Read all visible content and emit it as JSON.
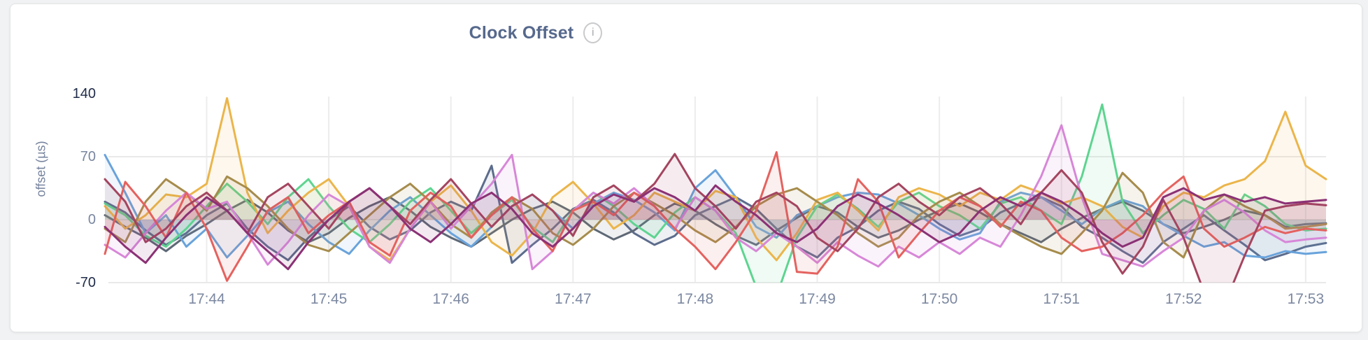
{
  "page": {
    "background": "#f1f2f3"
  },
  "card": {
    "background": "#ffffff",
    "border_color": "#e4e5e6"
  },
  "header": {
    "title": "Clock Offset",
    "info_icon": "i"
  },
  "chart_data": {
    "type": "line",
    "title": "Clock Offset",
    "xlabel": "",
    "ylabel": "offset (µs)",
    "ylim": [
      -70,
      140
    ],
    "grid": true,
    "legend": "none",
    "x_start": "17:43:10",
    "x_interval_seconds": 10,
    "x_ticks": [
      {
        "label": "17:44",
        "index": 5
      },
      {
        "label": "17:45",
        "index": 11
      },
      {
        "label": "17:46",
        "index": 17
      },
      {
        "label": "17:47",
        "index": 23
      },
      {
        "label": "17:48",
        "index": 29
      },
      {
        "label": "17:49",
        "index": 35
      },
      {
        "label": "17:50",
        "index": 41
      },
      {
        "label": "17:51",
        "index": 47
      },
      {
        "label": "17:52",
        "index": 53
      },
      {
        "label": "17:53",
        "index": 59
      }
    ],
    "y_ticks": [
      {
        "label": "140",
        "value": 140,
        "emphasized": true
      },
      {
        "label": "70",
        "value": 70,
        "emphasized": false
      },
      {
        "label": "0",
        "value": 0,
        "emphasized": false
      },
      {
        "label": "-70",
        "value": -70,
        "emphasized": true
      }
    ],
    "fill_opacity": 0.1,
    "series": [
      {
        "name": "slate",
        "color": "#5c6c8c",
        "values": [
          20,
          8,
          -12,
          -28,
          -15,
          5,
          18,
          -10,
          -30,
          -45,
          -20,
          0,
          15,
          -8,
          -22,
          -12,
          8,
          20,
          10,
          60,
          -48,
          -28,
          -10,
          12,
          22,
          8,
          -15,
          -28,
          -18,
          5,
          15,
          25,
          12,
          -10,
          -30,
          -42,
          -20,
          -8,
          10,
          20,
          12,
          -5,
          -18,
          -10,
          8,
          18,
          25,
          15,
          -8,
          -20,
          -35,
          -48,
          -25,
          -10,
          5,
          -12,
          -28,
          -45,
          -38,
          -30,
          -26
        ]
      },
      {
        "name": "charcoal",
        "color": "#5e6876",
        "values": [
          5,
          -8,
          -20,
          -35,
          -18,
          -5,
          10,
          22,
          8,
          -12,
          -25,
          -15,
          2,
          15,
          25,
          10,
          -8,
          -20,
          -30,
          -15,
          0,
          12,
          20,
          8,
          -10,
          -22,
          -12,
          5,
          18,
          10,
          -5,
          -18,
          -28,
          -12,
          2,
          15,
          8,
          -8,
          -20,
          -12,
          0,
          10,
          18,
          8,
          -5,
          -15,
          -25,
          -10,
          2,
          12,
          20,
          10,
          -5,
          -15,
          -8,
          0,
          10,
          5,
          -8,
          -5,
          -4
        ]
      },
      {
        "name": "blue",
        "color": "#69a3db",
        "values": [
          72,
          30,
          -15,
          5,
          -30,
          -10,
          -42,
          -18,
          8,
          20,
          -5,
          -25,
          -38,
          -12,
          10,
          25,
          5,
          -15,
          -30,
          -8,
          15,
          28,
          10,
          -10,
          18,
          30,
          22,
          8,
          -12,
          35,
          55,
          25,
          -8,
          -20,
          5,
          15,
          25,
          30,
          28,
          18,
          5,
          -10,
          -22,
          -15,
          20,
          30,
          25,
          10,
          -5,
          12,
          22,
          15,
          -5,
          -18,
          -30,
          -25,
          -40,
          -42,
          -35,
          -38,
          -36
        ]
      },
      {
        "name": "green",
        "color": "#5ed490",
        "values": [
          18,
          5,
          -18,
          -30,
          -10,
          15,
          40,
          20,
          -5,
          25,
          45,
          15,
          -10,
          -25,
          -5,
          20,
          35,
          10,
          -15,
          5,
          22,
          -8,
          -25,
          10,
          30,
          15,
          -5,
          -20,
          8,
          25,
          10,
          -15,
          -75,
          -85,
          -20,
          15,
          28,
          12,
          -8,
          20,
          30,
          15,
          5,
          -10,
          18,
          25,
          10,
          -5,
          48,
          128,
          20,
          -15,
          5,
          22,
          12,
          -10,
          28,
          15,
          -5,
          -12,
          -10
        ]
      },
      {
        "name": "gold",
        "color": "#ebb54a",
        "values": [
          15,
          -10,
          5,
          28,
          25,
          40,
          135,
          30,
          -15,
          10,
          30,
          45,
          15,
          -30,
          -45,
          -10,
          20,
          38,
          10,
          -25,
          -40,
          -15,
          25,
          42,
          18,
          -10,
          5,
          30,
          20,
          10,
          32,
          25,
          -20,
          -45,
          -15,
          22,
          30,
          10,
          -12,
          25,
          35,
          28,
          15,
          30,
          22,
          38,
          30,
          18,
          25,
          15,
          -8,
          -20,
          15,
          30,
          25,
          38,
          45,
          65,
          120,
          60,
          45
        ]
      },
      {
        "name": "olive",
        "color": "#a68c4c",
        "values": [
          -10,
          -25,
          20,
          45,
          30,
          10,
          48,
          35,
          15,
          -10,
          -28,
          -35,
          -15,
          5,
          25,
          40,
          20,
          -5,
          -20,
          8,
          25,
          12,
          -15,
          -28,
          -10,
          15,
          30,
          18,
          5,
          -12,
          -25,
          -8,
          15,
          28,
          35,
          20,
          5,
          -15,
          -30,
          -20,
          5,
          20,
          30,
          15,
          -5,
          -18,
          -30,
          -38,
          -15,
          10,
          52,
          30,
          -25,
          -42,
          10,
          28,
          15,
          5,
          -10,
          -8,
          -5
        ]
      },
      {
        "name": "orchid",
        "color": "#d787d8",
        "values": [
          -28,
          -42,
          -15,
          10,
          30,
          12,
          20,
          -15,
          -50,
          -25,
          5,
          28,
          15,
          -30,
          -48,
          -10,
          20,
          -10,
          15,
          40,
          72,
          -55,
          -35,
          10,
          30,
          18,
          35,
          15,
          -10,
          25,
          10,
          -20,
          -35,
          -15,
          -30,
          -48,
          -25,
          -40,
          -52,
          -30,
          -42,
          -25,
          -38,
          -20,
          -30,
          5,
          48,
          105,
          25,
          -38,
          -45,
          -52,
          -35,
          -20,
          10,
          22,
          8,
          -12,
          -25,
          -22,
          -20
        ]
      },
      {
        "name": "red",
        "color": "#e4625f",
        "values": [
          -38,
          42,
          15,
          -20,
          30,
          -10,
          -68,
          -30,
          10,
          25,
          -15,
          5,
          20,
          -25,
          -40,
          10,
          30,
          15,
          -20,
          5,
          25,
          -10,
          -35,
          10,
          20,
          5,
          30,
          15,
          -10,
          -30,
          -55,
          -25,
          10,
          75,
          -58,
          -60,
          -30,
          45,
          20,
          -42,
          -15,
          10,
          25,
          15,
          -8,
          20,
          10,
          -20,
          -35,
          -30,
          -15,
          5,
          30,
          48,
          -10,
          -30,
          -20,
          -8,
          -15,
          -10,
          -12
        ]
      },
      {
        "name": "wine",
        "color": "#a44560",
        "values": [
          45,
          20,
          -25,
          -10,
          15,
          30,
          10,
          -15,
          25,
          40,
          15,
          -10,
          20,
          35,
          15,
          -5,
          22,
          45,
          18,
          -8,
          15,
          28,
          10,
          -18,
          25,
          38,
          20,
          40,
          73,
          35,
          15,
          -10,
          20,
          30,
          15,
          -20,
          -35,
          -10,
          25,
          40,
          20,
          5,
          25,
          35,
          18,
          -5,
          30,
          55,
          30,
          -25,
          -60,
          -30,
          22,
          -20,
          -80,
          -95,
          -40,
          10,
          15,
          18,
          16
        ]
      },
      {
        "name": "plum",
        "color": "#8b3175",
        "values": [
          -8,
          -30,
          -48,
          -20,
          5,
          25,
          10,
          -15,
          -35,
          -55,
          -25,
          0,
          20,
          35,
          15,
          -10,
          -25,
          -5,
          18,
          30,
          12,
          -15,
          -30,
          -10,
          15,
          28,
          20,
          35,
          25,
          10,
          38,
          20,
          5,
          -15,
          -25,
          -10,
          15,
          28,
          18,
          5,
          -10,
          -25,
          -15,
          10,
          25,
          15,
          30,
          20,
          5,
          -15,
          -30,
          -20,
          25,
          35,
          22,
          28,
          20,
          25,
          18,
          20,
          22
        ]
      }
    ]
  }
}
